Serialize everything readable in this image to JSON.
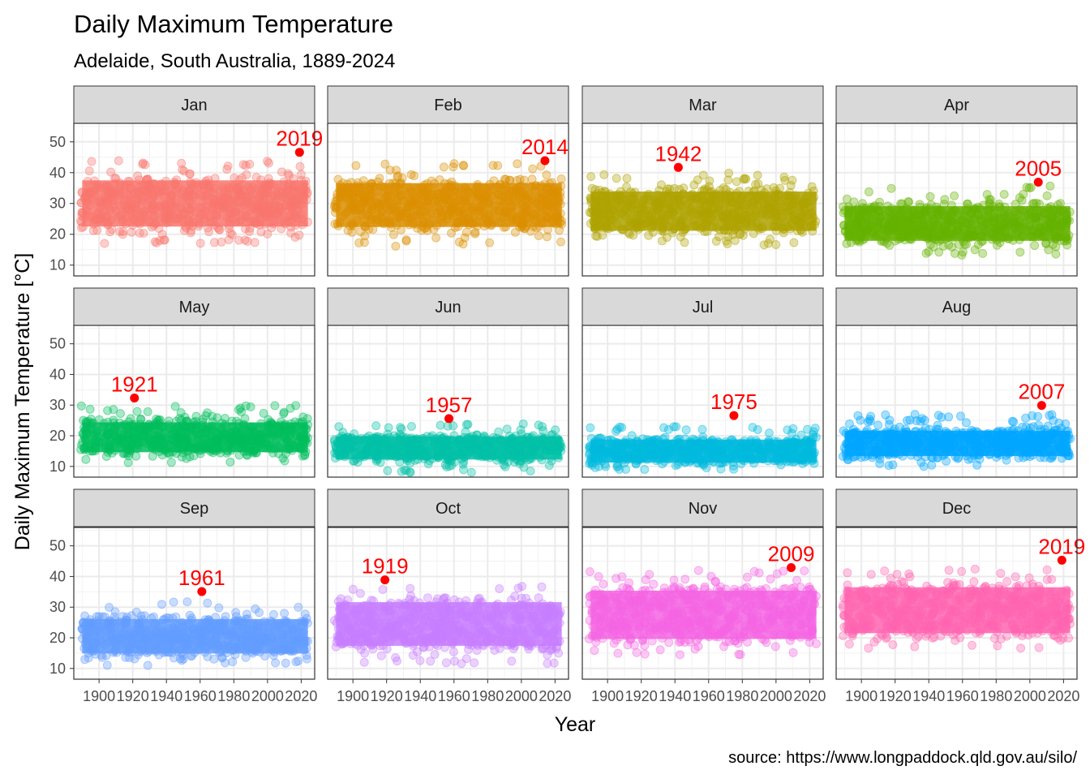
{
  "chart_data": {
    "type": "scatter",
    "title": "Daily Maximum Temperature",
    "subtitle": "Adelaide, South Australia, 1889-2024",
    "xlabel": "Year",
    "ylabel": "Daily Maximum Temperature [°C]",
    "caption": "source: https://www.longpaddock.qld.gov.au/silo/",
    "xlim": [
      1885,
      2028
    ],
    "ylim": [
      6.5,
      56
    ],
    "x_ticks": [
      1900,
      1920,
      1940,
      1960,
      1980,
      2000,
      2020
    ],
    "y_ticks": [
      10,
      20,
      30,
      40,
      50
    ],
    "grid": true,
    "layout": "facet_wrap 4 columns x 3 rows",
    "record_color": "#ff0000",
    "panels": [
      {
        "month": "Jan",
        "color": "#F8766D",
        "typ_low": 20,
        "typ_high": 40,
        "min": 17,
        "max": 44,
        "record": {
          "year": 2019,
          "value": 46.6,
          "label": "2019"
        }
      },
      {
        "month": "Feb",
        "color": "#DB8E00",
        "typ_low": 20,
        "typ_high": 39,
        "min": 16,
        "max": 43,
        "record": {
          "year": 2014,
          "value": 43.9,
          "label": "2014"
        }
      },
      {
        "month": "Mar",
        "color": "#AEA200",
        "typ_low": 19,
        "typ_high": 36,
        "min": 16,
        "max": 40,
        "record": {
          "year": 1942,
          "value": 41.7,
          "label": "1942"
        }
      },
      {
        "month": "Apr",
        "color": "#64B200",
        "typ_low": 16,
        "typ_high": 31,
        "min": 13,
        "max": 36,
        "record": {
          "year": 2005,
          "value": 36.9,
          "label": "2005"
        }
      },
      {
        "month": "May",
        "color": "#00BD5C",
        "typ_low": 13,
        "typ_high": 26,
        "min": 11,
        "max": 30,
        "record": {
          "year": 1921,
          "value": 32.3,
          "label": "1921"
        }
      },
      {
        "month": "Jun",
        "color": "#00C1A7",
        "typ_low": 11,
        "typ_high": 21,
        "min": 8,
        "max": 24,
        "record": {
          "year": 1957,
          "value": 25.6,
          "label": "1957"
        }
      },
      {
        "month": "Jul",
        "color": "#00BADE",
        "typ_low": 10,
        "typ_high": 20,
        "min": 9,
        "max": 23,
        "record": {
          "year": 1975,
          "value": 26.6,
          "label": "1975"
        }
      },
      {
        "month": "Aug",
        "color": "#00A6FF",
        "typ_low": 12,
        "typ_high": 23,
        "min": 10,
        "max": 27,
        "record": {
          "year": 2007,
          "value": 29.9,
          "label": "2007"
        }
      },
      {
        "month": "Sep",
        "color": "#619CFF",
        "typ_low": 13,
        "typ_high": 28,
        "min": 11,
        "max": 32,
        "record": {
          "year": 1961,
          "value": 35.1,
          "label": "1961"
        }
      },
      {
        "month": "Oct",
        "color": "#C77CFF",
        "typ_low": 15,
        "typ_high": 34,
        "min": 11,
        "max": 37,
        "record": {
          "year": 1919,
          "value": 38.9,
          "label": "1919"
        }
      },
      {
        "month": "Nov",
        "color": "#F564E3",
        "typ_low": 17,
        "typ_high": 38,
        "min": 14,
        "max": 42,
        "record": {
          "year": 2009,
          "value": 42.9,
          "label": "2009"
        }
      },
      {
        "month": "Dec",
        "color": "#FF64B0",
        "typ_low": 19,
        "typ_high": 39,
        "min": 16,
        "max": 43,
        "record": {
          "year": 2019,
          "value": 45.3,
          "label": "2019"
        }
      }
    ]
  }
}
